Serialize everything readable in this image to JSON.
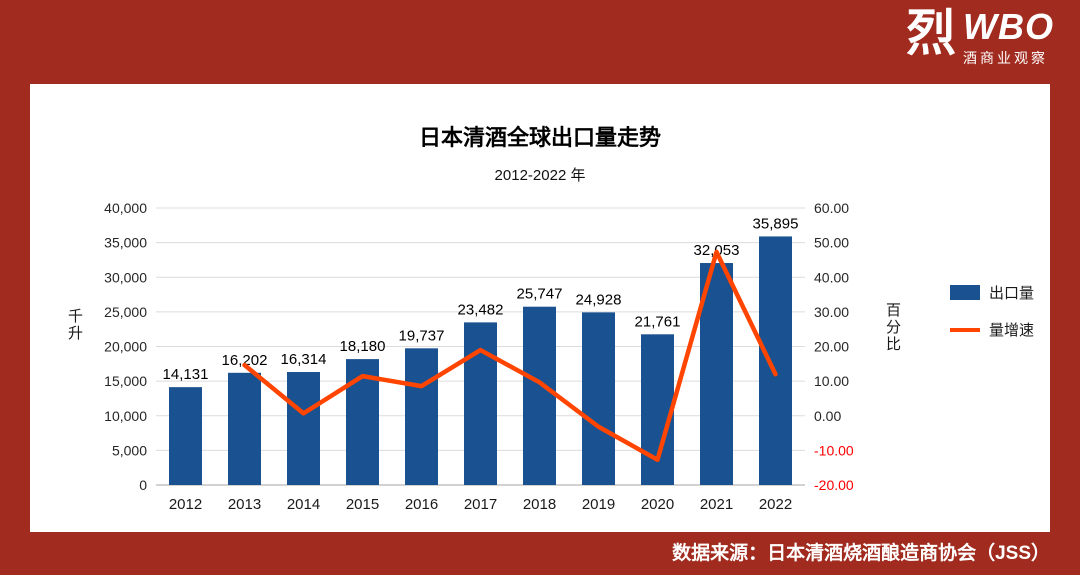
{
  "page": {
    "background_color": "#A12B1E",
    "panel_color": "#FFFFFF"
  },
  "logo": {
    "character": "烈",
    "acronym": "WBO",
    "subtitle": "酒商业观察"
  },
  "footer": {
    "source_text": "数据来源：日本清酒烧酒酿造商协会（JSS）"
  },
  "chart_data": {
    "type": "bar+line combo",
    "title": "日本清酒全球出口量走势",
    "subtitle": "2012-2022 年",
    "categories": [
      "2012",
      "2013",
      "2014",
      "2015",
      "2016",
      "2017",
      "2018",
      "2019",
      "2020",
      "2021",
      "2022"
    ],
    "series": [
      {
        "name": "出口量",
        "type": "bar",
        "axis": "left",
        "color": "#1A5190",
        "values": [
          14131,
          16202,
          16314,
          18180,
          19737,
          23482,
          25747,
          24928,
          21761,
          32053,
          35895
        ]
      },
      {
        "name": "量增速",
        "type": "line",
        "axis": "right",
        "color": "#FF4500",
        "values": [
          null,
          14.66,
          0.69,
          11.44,
          8.56,
          18.97,
          9.65,
          -3.18,
          -12.7,
          47.3,
          11.99
        ]
      }
    ],
    "bar_labels": [
      "14,131",
      "16,202",
      "16,314",
      "18,180",
      "19,737",
      "23,482",
      "25,747",
      "24,928",
      "21,761",
      "32,053",
      "35,895"
    ],
    "left_axis": {
      "title": "千升",
      "min": 0,
      "max": 40000,
      "step": 5000,
      "tick_labels": [
        "0",
        "5,000",
        "10,000",
        "15,000",
        "20,000",
        "25,000",
        "30,000",
        "35,000",
        "40,000"
      ]
    },
    "right_axis": {
      "title": "百分比",
      "min": -20,
      "max": 60,
      "step": 10,
      "tick_labels": [
        "-20.00",
        "-10.00",
        "0.00",
        "10.00",
        "20.00",
        "30.00",
        "40.00",
        "50.00",
        "60.00"
      ],
      "negative_color": "#FF0000"
    },
    "grid": true,
    "legend_position": "right"
  }
}
